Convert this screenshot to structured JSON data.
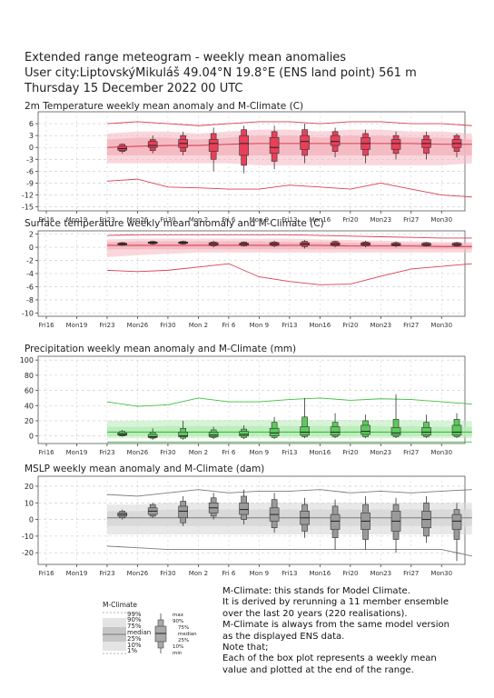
{
  "header": {
    "line1": "Extended range meteogram - weekly mean anomalies",
    "line2": "User city:LiptovskýMikuláš 49.04°N 19.8°E (ENS land point) 561 m",
    "line3": "Thursday 15 December 2022 00 UTC"
  },
  "x_axis": {
    "tick_labels": [
      "Fri16",
      "Mon19",
      "Fri23",
      "Mon26",
      "Fri30",
      "Mon 2",
      "Fri 6",
      "Mon 9",
      "Fri13",
      "Mon16",
      "Fri20",
      "Mon23",
      "Fri27",
      "Mon30"
    ]
  },
  "chart_data": [
    {
      "type": "box",
      "title": "2m Temperature weekly mean anomaly and M-Climate (C)",
      "ylim": [
        -16,
        9
      ],
      "yticks": [
        6,
        3,
        0,
        -3,
        -6,
        -9,
        -12,
        -15
      ],
      "grid": true,
      "colors": {
        "box": "#e8405a",
        "band": "#f4b6c0",
        "line": "#d94050"
      },
      "climate": {
        "x": [
          2,
          4,
          6,
          8,
          10,
          12,
          14,
          16,
          18,
          20,
          22,
          24,
          26
        ],
        "p99": [
          6.0,
          6.5,
          6.0,
          5.5,
          6.0,
          6.5,
          6.5,
          6.0,
          6.5,
          6.5,
          6.0,
          6.0,
          5.5
        ],
        "p90": [
          3.5,
          4.0,
          4.0,
          3.5,
          4.0,
          4.5,
          4.5,
          4.0,
          4.5,
          4.5,
          4.0,
          4.0,
          3.5
        ],
        "p75": [
          2.0,
          2.5,
          2.5,
          2.0,
          2.5,
          3.0,
          3.0,
          2.5,
          3.0,
          3.0,
          2.5,
          2.5,
          2.0
        ],
        "median": [
          0.0,
          0.3,
          0.5,
          0.5,
          0.8,
          1.0,
          1.0,
          1.0,
          1.0,
          1.0,
          1.0,
          0.8,
          0.8
        ],
        "p25": [
          -2.0,
          -2.0,
          -2.0,
          -2.0,
          -2.0,
          -2.0,
          -2.0,
          -2.0,
          -2.0,
          -2.0,
          -2.0,
          -2.0,
          -2.0
        ],
        "p10": [
          -4.0,
          -4.0,
          -4.0,
          -4.0,
          -4.0,
          -4.5,
          -4.5,
          -4.5,
          -4.5,
          -4.5,
          -4.5,
          -4.5,
          -4.0
        ],
        "p1": [
          -8.5,
          -8.0,
          -10.0,
          -10.2,
          -10.5,
          -10.5,
          -9.5,
          -10.0,
          -10.5,
          -9.0,
          -10.5,
          -12.0,
          -12.5
        ]
      },
      "boxes": [
        {
          "x": 2,
          "min": -1.5,
          "p10": -1.0,
          "p25": -0.7,
          "median": -0.3,
          "p75": 0.3,
          "p90": 0.8,
          "max": 1.0
        },
        {
          "x": 3,
          "min": -1.5,
          "p10": -0.8,
          "p25": 0.0,
          "median": 0.5,
          "p75": 1.5,
          "p90": 2.0,
          "max": 3.0
        },
        {
          "x": 4,
          "min": -2.0,
          "p10": -1.0,
          "p25": 0.0,
          "median": 1.0,
          "p75": 2.0,
          "p90": 3.0,
          "max": 4.0
        },
        {
          "x": 5,
          "min": -6.0,
          "p10": -3.0,
          "p25": -1.0,
          "median": 1.0,
          "p75": 2.0,
          "p90": 3.5,
          "max": 5.0
        },
        {
          "x": 6,
          "min": -6.5,
          "p10": -4.5,
          "p25": -2.0,
          "median": 1.0,
          "p75": 3.0,
          "p90": 4.5,
          "max": 5.5
        },
        {
          "x": 7,
          "min": -5.5,
          "p10": -3.5,
          "p25": -1.5,
          "median": 0.0,
          "p75": 2.5,
          "p90": 4.0,
          "max": 5.5
        },
        {
          "x": 8,
          "min": -4.0,
          "p10": -2.0,
          "p25": -0.5,
          "median": 1.5,
          "p75": 3.0,
          "p90": 4.5,
          "max": 6.0
        },
        {
          "x": 9,
          "min": -2.5,
          "p10": -1.0,
          "p25": 0.5,
          "median": 1.5,
          "p75": 3.0,
          "p90": 4.0,
          "max": 5.0
        },
        {
          "x": 10,
          "min": -4.0,
          "p10": -2.0,
          "p25": -0.5,
          "median": 1.0,
          "p75": 2.5,
          "p90": 3.5,
          "max": 4.5
        },
        {
          "x": 11,
          "min": -3.0,
          "p10": -1.5,
          "p25": -0.5,
          "median": 1.0,
          "p75": 2.0,
          "p90": 3.0,
          "max": 4.0
        },
        {
          "x": 12,
          "min": -3.0,
          "p10": -1.5,
          "p25": 0.0,
          "median": 1.0,
          "p75": 2.0,
          "p90": 3.0,
          "max": 4.0
        },
        {
          "x": 13,
          "min": -2.5,
          "p10": -1.0,
          "p25": 0.0,
          "median": 1.0,
          "p75": 2.0,
          "p90": 3.0,
          "max": 3.5
        }
      ]
    },
    {
      "type": "box",
      "title": "Surface temperature weekly mean anomaly and M-Climate (C)",
      "ylim": [
        -10.5,
        2.5
      ],
      "yticks": [
        2,
        0,
        -2,
        -4,
        -6,
        -8,
        -10
      ],
      "grid": true,
      "colors": {
        "box": "#e8405a",
        "band": "#f4b6c0",
        "line": "#d94050"
      },
      "climate": {
        "x": [
          2,
          4,
          6,
          8,
          10,
          12,
          14,
          16,
          18,
          20,
          22,
          24,
          26
        ],
        "p99": [
          1.8,
          1.9,
          1.9,
          1.9,
          1.9,
          1.9,
          1.9,
          1.8,
          1.7,
          1.6,
          1.5,
          1.4,
          1.4
        ],
        "p90": [
          1.2,
          1.3,
          1.3,
          1.3,
          1.3,
          1.3,
          1.3,
          1.2,
          1.1,
          1.0,
          0.9,
          0.8,
          0.8
        ],
        "p75": [
          0.8,
          0.9,
          0.9,
          0.9,
          0.9,
          0.9,
          0.8,
          0.8,
          0.7,
          0.6,
          0.6,
          0.5,
          0.5
        ],
        "median": [
          0.3,
          0.3,
          0.3,
          0.3,
          0.3,
          0.3,
          0.3,
          0.3,
          0.2,
          0.2,
          0.2,
          0.1,
          0.1
        ],
        "p25": [
          -0.3,
          -0.3,
          -0.3,
          -0.3,
          -0.3,
          -0.3,
          -0.3,
          -0.3,
          -0.3,
          -0.3,
          -0.3,
          -0.3,
          -0.3
        ],
        "p10": [
          -1.5,
          -1.2,
          -1.0,
          -0.8,
          -0.8,
          -0.8,
          -0.8,
          -0.8,
          -0.8,
          -0.8,
          -0.8,
          -0.8,
          -0.8
        ],
        "p1": [
          -3.5,
          -3.7,
          -3.5,
          -3.0,
          -2.5,
          -4.5,
          -5.2,
          -5.7,
          -5.6,
          -4.4,
          -3.3,
          -2.9,
          -2.5
        ]
      },
      "boxes": [
        {
          "x": 2,
          "min": 0.2,
          "p10": 0.3,
          "p25": 0.4,
          "median": 0.5,
          "p75": 0.6,
          "p90": 0.7,
          "max": 0.8
        },
        {
          "x": 3,
          "min": 0.4,
          "p10": 0.5,
          "p25": 0.6,
          "median": 0.7,
          "p75": 0.8,
          "p90": 0.9,
          "max": 1.0
        },
        {
          "x": 4,
          "min": 0.4,
          "p10": 0.5,
          "p25": 0.6,
          "median": 0.7,
          "p75": 0.8,
          "p90": 0.9,
          "max": 1.0
        },
        {
          "x": 5,
          "min": 0.0,
          "p10": 0.2,
          "p25": 0.3,
          "median": 0.5,
          "p75": 0.7,
          "p90": 0.8,
          "max": 1.0
        },
        {
          "x": 6,
          "min": 0.1,
          "p10": 0.2,
          "p25": 0.3,
          "median": 0.5,
          "p75": 0.6,
          "p90": 0.8,
          "max": 0.9
        },
        {
          "x": 7,
          "min": 0.0,
          "p10": 0.2,
          "p25": 0.3,
          "median": 0.5,
          "p75": 0.7,
          "p90": 0.8,
          "max": 1.0
        },
        {
          "x": 8,
          "min": -0.2,
          "p10": 0.1,
          "p25": 0.3,
          "median": 0.5,
          "p75": 0.7,
          "p90": 0.9,
          "max": 1.1
        },
        {
          "x": 9,
          "min": 0.0,
          "p10": 0.2,
          "p25": 0.3,
          "median": 0.5,
          "p75": 0.7,
          "p90": 0.9,
          "max": 1.0
        },
        {
          "x": 10,
          "min": 0.0,
          "p10": 0.2,
          "p25": 0.3,
          "median": 0.5,
          "p75": 0.7,
          "p90": 0.8,
          "max": 1.0
        },
        {
          "x": 11,
          "min": 0.0,
          "p10": 0.2,
          "p25": 0.3,
          "median": 0.4,
          "p75": 0.6,
          "p90": 0.7,
          "max": 0.9
        },
        {
          "x": 12,
          "min": 0.1,
          "p10": 0.2,
          "p25": 0.3,
          "median": 0.4,
          "p75": 0.6,
          "p90": 0.7,
          "max": 0.8
        },
        {
          "x": 13,
          "min": 0.1,
          "p10": 0.2,
          "p25": 0.3,
          "median": 0.4,
          "p75": 0.6,
          "p90": 0.7,
          "max": 0.8
        }
      ]
    },
    {
      "type": "box",
      "title": "Precipitation weekly mean anomaly and M-Climate (mm)",
      "ylim": [
        -10,
        105
      ],
      "yticks": [
        100,
        80,
        60,
        40,
        20,
        0
      ],
      "grid": true,
      "colors": {
        "box": "#5dc95d",
        "band": "#b8ebb8",
        "line": "#3fbf3f"
      },
      "climate": {
        "x": [
          2,
          4,
          6,
          8,
          10,
          12,
          14,
          16,
          18,
          20,
          22,
          24,
          26
        ],
        "p99": [
          45,
          39,
          41,
          50,
          45,
          45,
          48,
          50,
          47,
          49,
          48,
          45,
          42
        ],
        "p90": [
          20,
          20,
          21,
          21,
          21,
          21,
          21,
          21,
          21,
          21,
          21,
          20,
          20
        ],
        "p75": [
          12,
          12,
          13,
          13,
          13,
          13,
          13,
          13,
          13,
          13,
          13,
          12,
          12
        ],
        "median": [
          5,
          5,
          5,
          5,
          5,
          5,
          5,
          5,
          5,
          5,
          5,
          5,
          5
        ],
        "p25": [
          0,
          0,
          0,
          0,
          0,
          0,
          0,
          0,
          0,
          0,
          0,
          0,
          0
        ],
        "p10": [
          -3,
          -3,
          -3,
          -3,
          -3,
          -3,
          -3,
          -3,
          -3,
          -3,
          -3,
          -3,
          -3
        ],
        "p1": [
          -8,
          -8,
          -8,
          -8,
          -8,
          -8,
          -8,
          -8,
          -8,
          -8,
          -8,
          -8,
          -8
        ]
      },
      "boxes": [
        {
          "x": 2,
          "min": -1,
          "p10": 0,
          "p25": 1,
          "median": 2,
          "p75": 4,
          "p90": 6,
          "max": 8
        },
        {
          "x": 3,
          "min": -5,
          "p10": -3,
          "p25": -2,
          "median": -1,
          "p75": 2,
          "p90": 5,
          "max": 10
        },
        {
          "x": 4,
          "min": -5,
          "p10": -3,
          "p25": -1,
          "median": 0,
          "p75": 5,
          "p90": 10,
          "max": 20
        },
        {
          "x": 5,
          "min": -4,
          "p10": -2,
          "p25": -1,
          "median": 1,
          "p75": 5,
          "p90": 8,
          "max": 12
        },
        {
          "x": 6,
          "min": -4,
          "p10": -2,
          "p25": 0,
          "median": 2,
          "p75": 6,
          "p90": 9,
          "max": 14
        },
        {
          "x": 7,
          "min": -4,
          "p10": -2,
          "p25": 0,
          "median": 4,
          "p75": 10,
          "p90": 18,
          "max": 25
        },
        {
          "x": 8,
          "min": -3,
          "p10": -1,
          "p25": 1,
          "median": 5,
          "p75": 12,
          "p90": 25,
          "max": 50
        },
        {
          "x": 9,
          "min": -3,
          "p10": -1,
          "p25": 1,
          "median": 5,
          "p75": 12,
          "p90": 18,
          "max": 30
        },
        {
          "x": 10,
          "min": -3,
          "p10": -1,
          "p25": 2,
          "median": 6,
          "p75": 14,
          "p90": 20,
          "max": 28
        },
        {
          "x": 11,
          "min": -3,
          "p10": -1,
          "p25": 1,
          "median": 4,
          "p75": 11,
          "p90": 22,
          "max": 55
        },
        {
          "x": 12,
          "min": -3,
          "p10": -1,
          "p25": 1,
          "median": 5,
          "p75": 11,
          "p90": 18,
          "max": 28
        },
        {
          "x": 13,
          "min": -3,
          "p10": -1,
          "p25": 1,
          "median": 5,
          "p75": 14,
          "p90": 22,
          "max": 30
        }
      ]
    },
    {
      "type": "box",
      "title": "MSLP weekly mean anomaly and M-Climate (dam)",
      "ylim": [
        -27,
        26
      ],
      "yticks": [
        20,
        10,
        0,
        -10,
        -20
      ],
      "grid": true,
      "colors": {
        "box": "#9a9a9a",
        "band": "#d6d6d6",
        "line": "#7a7a7a"
      },
      "climate": {
        "x": [
          2,
          4,
          6,
          8,
          10,
          12,
          14,
          16,
          18,
          20,
          22,
          24,
          26
        ],
        "p99": [
          15,
          14,
          16,
          18,
          16,
          17,
          17,
          18,
          16,
          17,
          16,
          17,
          18
        ],
        "p90": [
          9,
          9,
          10,
          10,
          10,
          10,
          10,
          10,
          10,
          10,
          10,
          10,
          10
        ],
        "p75": [
          5,
          5,
          6,
          6,
          6,
          6,
          6,
          6,
          6,
          6,
          6,
          6,
          6
        ],
        "median": [
          1,
          1,
          1,
          1,
          1,
          1,
          1,
          1,
          1,
          1,
          1,
          1,
          1
        ],
        "p25": [
          -4,
          -4,
          -4,
          -4,
          -4,
          -4,
          -4,
          -4,
          -4,
          -4,
          -4,
          -4,
          -4
        ],
        "p10": [
          -9,
          -9,
          -9,
          -9,
          -9,
          -9,
          -9,
          -9,
          -9,
          -9,
          -9,
          -9,
          -9
        ],
        "p1": [
          -16,
          -17,
          -18,
          -18,
          -18,
          -18,
          -18,
          -18,
          -18,
          -18,
          -18,
          -18,
          -22
        ]
      },
      "boxes": [
        {
          "x": 2,
          "min": 0,
          "p10": 1,
          "p25": 2,
          "median": 3,
          "p75": 4,
          "p90": 5,
          "max": 6
        },
        {
          "x": 3,
          "min": 1,
          "p10": 2,
          "p25": 3,
          "median": 5,
          "p75": 7,
          "p90": 9,
          "max": 10
        },
        {
          "x": 4,
          "min": -4,
          "p10": -2,
          "p25": 1,
          "median": 5,
          "p75": 8,
          "p90": 11,
          "max": 14
        },
        {
          "x": 5,
          "min": 0,
          "p10": 2,
          "p25": 4,
          "median": 7,
          "p75": 10,
          "p90": 13,
          "max": 16
        },
        {
          "x": 6,
          "min": -3,
          "p10": 0,
          "p25": 3,
          "median": 6,
          "p75": 10,
          "p90": 14,
          "max": 18
        },
        {
          "x": 7,
          "min": -8,
          "p10": -5,
          "p25": -1,
          "median": 3,
          "p75": 7,
          "p90": 12,
          "max": 16
        },
        {
          "x": 8,
          "min": -11,
          "p10": -7,
          "p25": -3,
          "median": 1,
          "p75": 5,
          "p90": 9,
          "max": 13
        },
        {
          "x": 9,
          "min": -18,
          "p10": -11,
          "p25": -6,
          "median": -1,
          "p75": 3,
          "p90": 8,
          "max": 12
        },
        {
          "x": 10,
          "min": -18,
          "p10": -12,
          "p25": -6,
          "median": -1,
          "p75": 4,
          "p90": 9,
          "max": 14
        },
        {
          "x": 11,
          "min": -20,
          "p10": -12,
          "p25": -7,
          "median": -1,
          "p75": 5,
          "p90": 9,
          "max": 13
        },
        {
          "x": 12,
          "min": -14,
          "p10": -10,
          "p25": -5,
          "median": 0,
          "p75": 5,
          "p90": 10,
          "max": 14
        },
        {
          "x": 13,
          "min": -25,
          "p10": -12,
          "p25": -6,
          "median": -1,
          "p75": 3,
          "p90": 6,
          "max": 10
        }
      ]
    }
  ],
  "legend": {
    "title": "M-Climate",
    "climate_labels": [
      "99%",
      "90%",
      "75%",
      "median",
      "25%",
      "10%",
      "1%"
    ],
    "box_labels": [
      "max",
      "90%",
      "75%",
      "median",
      "25%",
      "10%",
      "min"
    ]
  },
  "note": {
    "lines": [
      "M-Climate: this stands for Model Climate.",
      "It is derived by rerunning a 11 member ensemble",
      "over the last 20 years  (220 realisations).",
      "M-Climate is always from the same model version",
      "as the displayed ENS data.",
      "Note that;",
      "Each of the box plot represents a weekly mean",
      "value and plotted at the end of the range."
    ]
  }
}
